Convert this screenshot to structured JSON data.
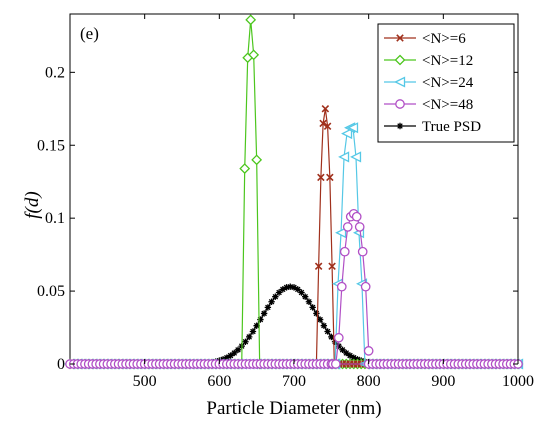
{
  "chart_data": {
    "type": "line",
    "panel_label": "(e)",
    "xlabel": "Particle Diameter (nm)",
    "ylabel": "f(d)",
    "xlim": [
      400,
      1000
    ],
    "ylim": [
      0,
      0.24
    ],
    "xticks": [
      500,
      600,
      700,
      800,
      900,
      1000
    ],
    "yticks": [
      0,
      0.05,
      0.1,
      0.15,
      0.2
    ],
    "xtick_labels": [
      "500",
      "600",
      "700",
      "800",
      "900",
      "1000"
    ],
    "ytick_labels": [
      "0",
      "0.05",
      "0.1",
      "0.15",
      "0.2"
    ],
    "grid": false,
    "legend_position": "top-right",
    "series": [
      {
        "name": "<N>=6",
        "color": "#a0301c",
        "marker": "x",
        "points": [
          [
            730,
            0
          ],
          [
            733,
            0.067
          ],
          [
            736,
            0.128
          ],
          [
            739,
            0.165
          ],
          [
            742,
            0.175
          ],
          [
            745,
            0.163
          ],
          [
            748,
            0.128
          ],
          [
            751,
            0.067
          ],
          [
            754,
            0
          ]
        ]
      },
      {
        "name": "<N>=12",
        "color": "#4cc61e",
        "marker": "diamond",
        "points": [
          [
            630,
            0
          ],
          [
            634,
            0.134
          ],
          [
            638,
            0.21
          ],
          [
            642,
            0.236
          ],
          [
            646,
            0.212
          ],
          [
            650,
            0.14
          ],
          [
            654,
            0
          ]
        ]
      },
      {
        "name": "<N>=24",
        "color": "#55c8e6",
        "marker": "triangle-left",
        "points": [
          [
            755,
            0
          ],
          [
            759,
            0.055
          ],
          [
            763,
            0.09
          ],
          [
            767,
            0.142
          ],
          [
            771,
            0.158
          ],
          [
            775,
            0.162
          ],
          [
            779,
            0.162
          ],
          [
            783,
            0.142
          ],
          [
            787,
            0.09
          ],
          [
            791,
            0.055
          ],
          [
            795,
            0
          ]
        ]
      },
      {
        "name": "<N>=48",
        "color": "#b14fc6",
        "marker": "circle",
        "points": [
          [
            752,
            0
          ],
          [
            756,
            0.0
          ],
          [
            760,
            0.018
          ],
          [
            764,
            0.053
          ],
          [
            768,
            0.077
          ],
          [
            772,
            0.094
          ],
          [
            776,
            0.101
          ],
          [
            780,
            0.103
          ],
          [
            784,
            0.101
          ],
          [
            788,
            0.094
          ],
          [
            792,
            0.077
          ],
          [
            796,
            0.053
          ],
          [
            800,
            0.009
          ]
        ]
      },
      {
        "name": "True PSD",
        "color": "#000000",
        "marker": "star",
        "mean": 695,
        "sd": 38,
        "peak": 0.053,
        "x_start": 400,
        "x_end": 1000,
        "x_step": 5
      }
    ]
  }
}
